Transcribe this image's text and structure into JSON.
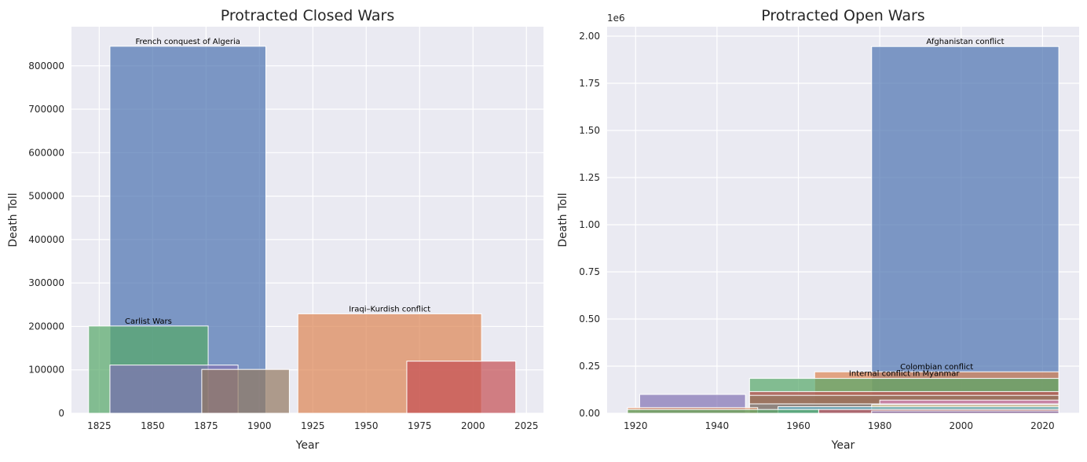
{
  "chart_data": [
    {
      "type": "bar",
      "title": "Protracted Closed Wars",
      "xlabel": "Year",
      "ylabel": "Death Toll",
      "xlim": [
        1812,
        2033
      ],
      "ylim": [
        0,
        890000
      ],
      "x_ticks": [
        1825,
        1850,
        1875,
        1900,
        1925,
        1950,
        1975,
        2000,
        2025
      ],
      "y_ticks": [
        0,
        100000,
        200000,
        300000,
        400000,
        500000,
        600000,
        700000,
        800000
      ],
      "grid": true,
      "series": [
        {
          "name": "French conquest of Algeria",
          "start": 1830,
          "end": 1903,
          "value": 845000,
          "color": "#4c72b0",
          "labeled": true
        },
        {
          "name": "Carlist Wars",
          "start": 1820,
          "end": 1876,
          "value": 201000,
          "color": "#55a868",
          "labeled": true
        },
        {
          "name": "",
          "start": 1830,
          "end": 1890,
          "value": 111000,
          "color": "#8172b3",
          "labeled": false
        },
        {
          "name": "",
          "start": 1873,
          "end": 1914,
          "value": 101000,
          "color": "#937860",
          "labeled": false
        },
        {
          "name": "Iraqi–Kurdish conflict",
          "start": 1918,
          "end": 2004,
          "value": 229000,
          "color": "#dd8452",
          "labeled": true
        },
        {
          "name": "",
          "start": 1969,
          "end": 2020,
          "value": 120000,
          "color": "#c44e52",
          "labeled": false
        }
      ]
    },
    {
      "type": "bar",
      "title": "Protracted Open Wars",
      "xlabel": "Year",
      "ylabel": "Death Toll",
      "offset_label": "1e6",
      "xlim": [
        1913,
        2029
      ],
      "ylim": [
        0,
        2.05
      ],
      "x_ticks": [
        1920,
        1940,
        1960,
        1980,
        2000,
        2020
      ],
      "y_ticks": [
        0.0,
        0.25,
        0.5,
        0.75,
        1.0,
        1.25,
        1.5,
        1.75,
        2.0
      ],
      "y_tick_labels": [
        "0.00",
        "0.25",
        "0.50",
        "0.75",
        "1.00",
        "1.25",
        "1.50",
        "1.75",
        "2.00"
      ],
      "grid": true,
      "series": [
        {
          "name": "Afghanistan conflict",
          "start": 1978,
          "end": 2024,
          "value": 1.945,
          "color": "#4c72b0",
          "labeled": true
        },
        {
          "name": "Colombian conflict",
          "start": 1964,
          "end": 2024,
          "value": 0.22,
          "color": "#dd8452",
          "labeled": true
        },
        {
          "name": "Internal conflict in Myanmar",
          "start": 1948,
          "end": 2024,
          "value": 0.185,
          "color": "#55a868",
          "labeled": true
        },
        {
          "name": "",
          "start": 1948,
          "end": 2024,
          "value": 0.115,
          "color": "#c44e52",
          "labeled": false
        },
        {
          "name": "",
          "start": 1948,
          "end": 2024,
          "value": 0.095,
          "color": "#937860",
          "labeled": false
        },
        {
          "name": "",
          "start": 1921,
          "end": 1947,
          "value": 0.1,
          "color": "#8172b3",
          "labeled": false
        },
        {
          "name": "",
          "start": 1980,
          "end": 2024,
          "value": 0.07,
          "color": "#da8bc3",
          "labeled": false
        },
        {
          "name": "",
          "start": 1948,
          "end": 2024,
          "value": 0.05,
          "color": "#8c8c8c",
          "labeled": false
        },
        {
          "name": "",
          "start": 1978,
          "end": 2024,
          "value": 0.045,
          "color": "#ccb974",
          "labeled": false
        },
        {
          "name": "",
          "start": 1955,
          "end": 2024,
          "value": 0.035,
          "color": "#64b5cd",
          "labeled": false
        },
        {
          "name": "",
          "start": 1918,
          "end": 1950,
          "value": 0.03,
          "color": "#dd8452",
          "labeled": false
        },
        {
          "name": "",
          "start": 1918,
          "end": 1965,
          "value": 0.02,
          "color": "#55a868",
          "labeled": false
        },
        {
          "name": "",
          "start": 1965,
          "end": 2024,
          "value": 0.02,
          "color": "#c44e52",
          "labeled": false
        },
        {
          "name": "",
          "start": 1978,
          "end": 2024,
          "value": 0.012,
          "color": "#8172b3",
          "labeled": false
        }
      ]
    }
  ]
}
